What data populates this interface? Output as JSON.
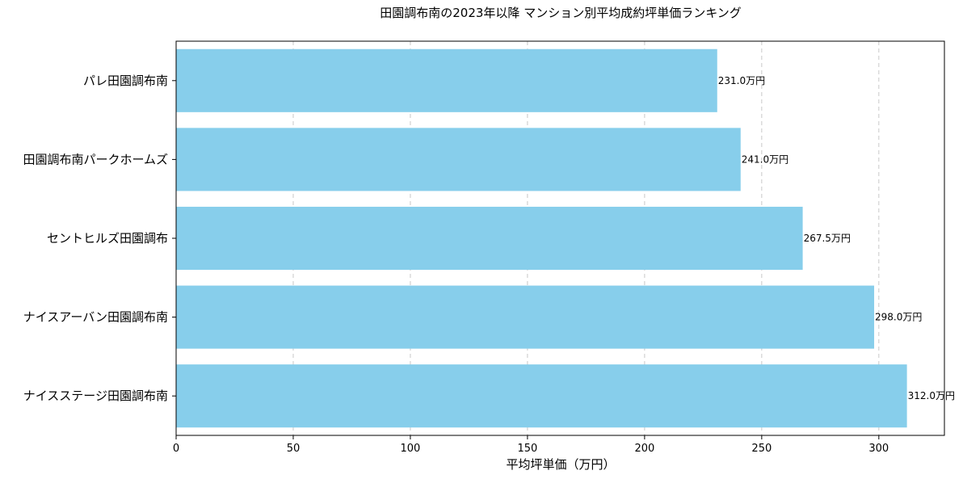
{
  "chart_data": {
    "type": "bar",
    "orientation": "horizontal",
    "title": "田園調布南の2023年以降 マンション別平均成約坪単価ランキング",
    "xlabel": "平均坪単価（万円）",
    "ylabel": "",
    "categories": [
      "パレ田園調布南",
      "田園調布南パークホームズ",
      "セントヒルズ田園調布",
      "ナイスアーバン田園調布南",
      "ナイスステージ田園調布南"
    ],
    "values": [
      231.0,
      241.0,
      267.5,
      298.0,
      312.0
    ],
    "data_labels": [
      "231.0万円",
      "241.0万円",
      "267.5万円",
      "298.0万円",
      "312.0万円"
    ],
    "xlim": [
      0,
      328
    ],
    "xticks": [
      0,
      50,
      100,
      150,
      200,
      250,
      300
    ],
    "grid": "x-dashed",
    "bar_color": "#87CEEB"
  }
}
